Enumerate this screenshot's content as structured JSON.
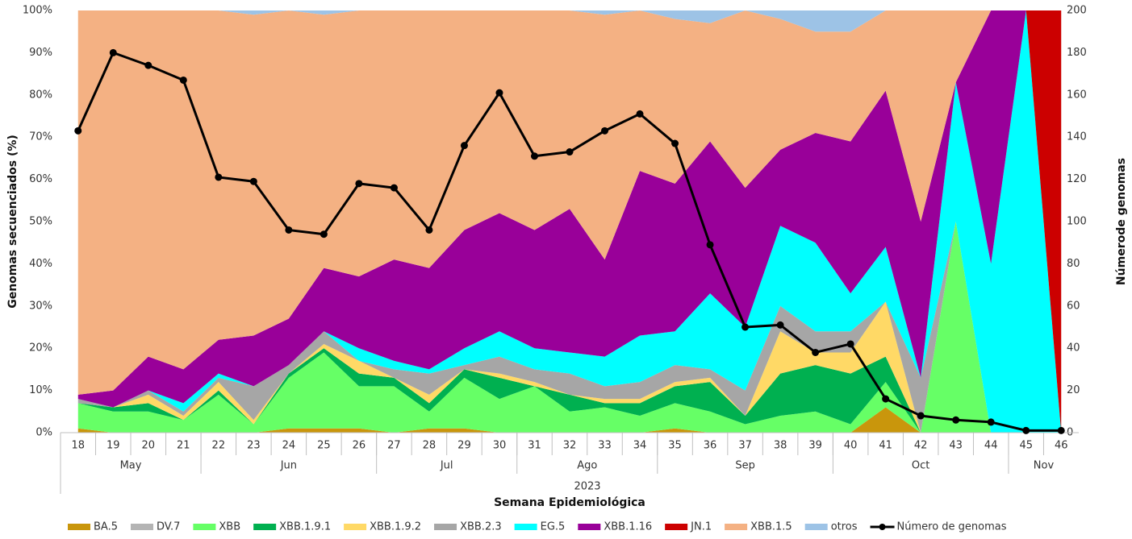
{
  "chart_data": {
    "type": "area_line",
    "ylabel": "Genomas secuenciados (%)",
    "y2label": "Númerode genomas",
    "xlabel": "Semana Epidemiológica",
    "year": "2023",
    "categories": [
      "18",
      "19",
      "20",
      "21",
      "22",
      "23",
      "24",
      "25",
      "26",
      "27",
      "28",
      "29",
      "30",
      "31",
      "32",
      "33",
      "34",
      "35",
      "36",
      "37",
      "38",
      "39",
      "40",
      "41",
      "42",
      "43",
      "44",
      "45",
      "46"
    ],
    "x_groups": [
      {
        "label": "May",
        "weeks": 4
      },
      {
        "label": "Jun",
        "weeks": 5
      },
      {
        "label": "Jul",
        "weeks": 4
      },
      {
        "label": "Ago",
        "weeks": 4
      },
      {
        "label": "Sep",
        "weeks": 5
      },
      {
        "label": "Oct",
        "weeks": 5
      },
      {
        "label": "Nov",
        "weeks": 2
      }
    ],
    "ylim": [
      0,
      100
    ],
    "yticks": [
      {
        "value": 0,
        "label": "0%"
      },
      {
        "value": 10,
        "label": "10%"
      },
      {
        "value": 20,
        "label": "20%"
      },
      {
        "value": 30,
        "label": "30%"
      },
      {
        "value": 40,
        "label": "40%"
      },
      {
        "value": 50,
        "label": "50%"
      },
      {
        "value": 60,
        "label": "60%"
      },
      {
        "value": 70,
        "label": "70%"
      },
      {
        "value": 80,
        "label": "80%"
      },
      {
        "value": 90,
        "label": "90%"
      },
      {
        "value": 100,
        "label": "100%"
      }
    ],
    "y2lim": [
      0,
      200
    ],
    "y2ticks": [
      0,
      20,
      40,
      60,
      80,
      100,
      120,
      140,
      160,
      180,
      200
    ],
    "series": [
      {
        "name": "BA.5",
        "color": "#c9960c",
        "values": [
          1,
          0,
          0,
          0,
          0,
          0,
          1,
          1,
          1,
          0,
          1,
          1,
          0,
          0,
          0,
          0,
          0,
          1,
          0,
          0,
          0,
          0,
          0,
          6,
          0,
          0,
          0,
          0,
          0
        ]
      },
      {
        "name": "DV.7",
        "color": "#b4b4b4",
        "values": [
          0,
          0,
          0,
          0,
          0,
          0,
          0,
          0,
          0,
          0,
          0,
          0,
          0,
          0,
          0,
          0,
          0,
          0,
          0,
          0,
          0,
          0,
          0,
          0,
          0,
          0,
          0,
          0,
          0
        ]
      },
      {
        "name": "XBB",
        "color": "#66ff66",
        "values": [
          6,
          5,
          5,
          3,
          9,
          2,
          12,
          18,
          10,
          11,
          4,
          12,
          8,
          11,
          5,
          6,
          4,
          6,
          5,
          2,
          4,
          5,
          2,
          6,
          0,
          50,
          0,
          0,
          0
        ]
      },
      {
        "name": "XBB.1.9.1",
        "color": "#00b050",
        "values": [
          0,
          1,
          2,
          0,
          1,
          0,
          1,
          1,
          3,
          2,
          2,
          2,
          5,
          0,
          4,
          1,
          3,
          4,
          7,
          2,
          10,
          11,
          12,
          6,
          0,
          0,
          0,
          0,
          0
        ]
      },
      {
        "name": "XBB.1.9.2",
        "color": "#ffd966",
        "values": [
          0,
          0,
          2,
          1,
          2,
          1,
          0,
          1,
          3,
          0,
          2,
          0,
          1,
          1,
          0,
          1,
          1,
          1,
          1,
          0,
          10,
          3,
          5,
          13,
          0,
          0,
          0,
          0,
          0
        ]
      },
      {
        "name": "XBB.2.3",
        "color": "#a6a6a6",
        "values": [
          1,
          0,
          1,
          1,
          1,
          8,
          2,
          3,
          0,
          2,
          5,
          1,
          4,
          3,
          5,
          3,
          4,
          4,
          2,
          6,
          6,
          5,
          5,
          0,
          13,
          0,
          0,
          0,
          0
        ]
      },
      {
        "name": "EG.5",
        "color": "#00ffff",
        "values": [
          0,
          0,
          0,
          2,
          1,
          0,
          0,
          0,
          3,
          2,
          1,
          4,
          6,
          5,
          5,
          7,
          11,
          8,
          18,
          15,
          19,
          21,
          9,
          13,
          0,
          33,
          40,
          100,
          0
        ]
      },
      {
        "name": "XBB.1.16",
        "color": "#990099",
        "values": [
          1,
          4,
          8,
          8,
          8,
          12,
          11,
          15,
          17,
          24,
          24,
          28,
          28,
          28,
          34,
          23,
          39,
          35,
          36,
          33,
          18,
          26,
          36,
          37,
          37,
          0,
          60,
          0,
          0
        ]
      },
      {
        "name": "JN.1",
        "color": "#cc0000",
        "values": [
          0,
          0,
          0,
          0,
          0,
          0,
          0,
          0,
          0,
          0,
          0,
          0,
          0,
          0,
          0,
          0,
          0,
          0,
          0,
          0,
          0,
          0,
          0,
          0,
          0,
          0,
          0,
          0,
          100
        ]
      },
      {
        "name": "XBB.1.5",
        "color": "#f4b183",
        "values": [
          91,
          90,
          82,
          85,
          78,
          76,
          73,
          60,
          63,
          59,
          61,
          52,
          48,
          52,
          47,
          58,
          38,
          39,
          28,
          42,
          31,
          24,
          26,
          19,
          50,
          17,
          0,
          0,
          0
        ]
      },
      {
        "name": "otros",
        "color": "#9dc3e6",
        "values": [
          0,
          0,
          0,
          0,
          0,
          1,
          0,
          1,
          0,
          0,
          0,
          0,
          0,
          0,
          0,
          1,
          0,
          2,
          3,
          0,
          2,
          5,
          5,
          0,
          0,
          0,
          0,
          0,
          0
        ]
      },
      {
        "name": "Número de genomas",
        "color": "#000000",
        "axis": "y2",
        "type": "line",
        "values": [
          143,
          180,
          174,
          167,
          121,
          119,
          96,
          94,
          118,
          116,
          96,
          136,
          161,
          131,
          133,
          143,
          151,
          137,
          89,
          50,
          51,
          38,
          42,
          16,
          8,
          6,
          5,
          1,
          1
        ]
      }
    ]
  }
}
